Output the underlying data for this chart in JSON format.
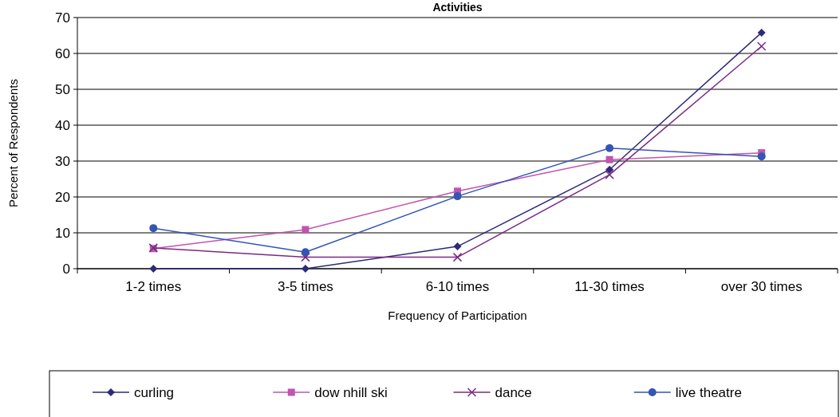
{
  "chart_data": {
    "type": "line",
    "title": "Activities",
    "xlabel": "Frequency of Participation",
    "ylabel": "Percent of Respondents",
    "categories": [
      "1-2 times",
      "3-5 times",
      "6-10 times",
      "11-30 times",
      "over 30 times"
    ],
    "series": [
      {
        "name": "curling",
        "color": "#2e2a7a",
        "marker": "diamond",
        "values": [
          0,
          0,
          6.2,
          27.6,
          65.8
        ]
      },
      {
        "name": "dow nhill ski",
        "color": "#c055b0",
        "marker": "square",
        "values": [
          5.6,
          10.9,
          21.6,
          30.4,
          32.3
        ]
      },
      {
        "name": "dance",
        "color": "#7a2a82",
        "marker": "cross",
        "values": [
          5.8,
          3.2,
          3.2,
          26.2,
          62
        ]
      },
      {
        "name": "live theatre",
        "color": "#3355b5",
        "marker": "circle",
        "values": [
          11.3,
          4.6,
          20.2,
          33.6,
          31.3
        ]
      }
    ],
    "ylim": [
      0,
      70
    ],
    "yticks": [
      0,
      10,
      20,
      30,
      40,
      50,
      60,
      70
    ],
    "grid": "y",
    "legend": "bottom",
    "line_style": "solid"
  }
}
